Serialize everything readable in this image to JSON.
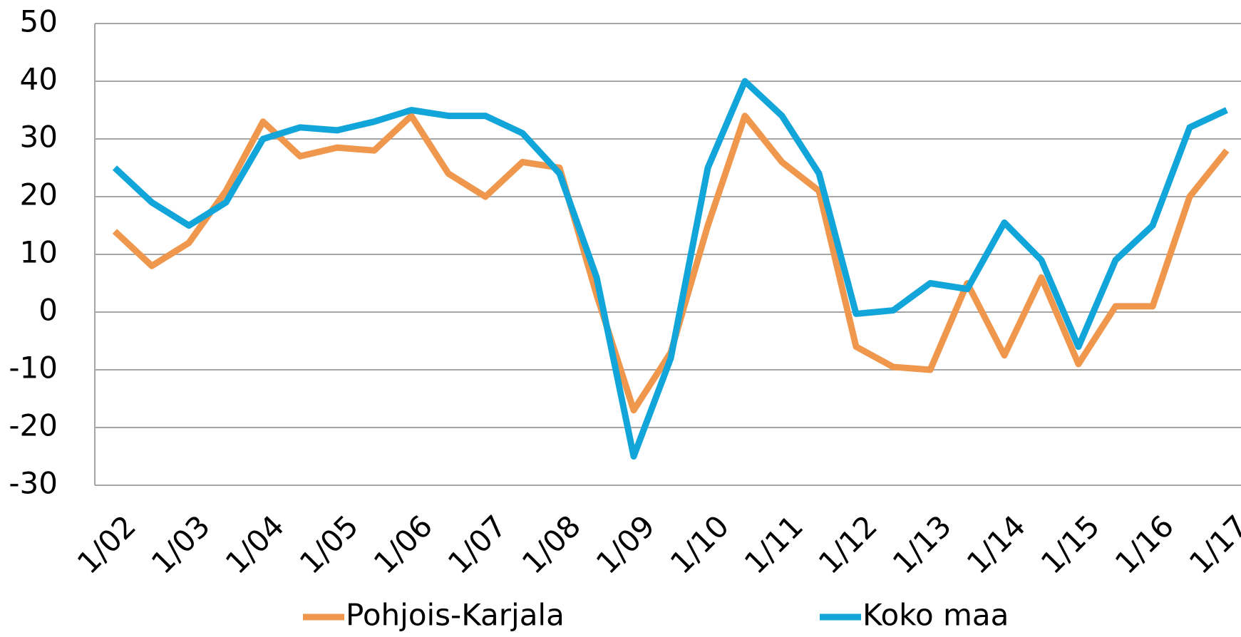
{
  "chart_data": {
    "type": "line",
    "categories": [
      "1/02",
      null,
      "1/03",
      null,
      "1/04",
      null,
      "1/05",
      null,
      "1/06",
      null,
      "1/07",
      null,
      "1/08",
      null,
      "1/09",
      null,
      "1/10",
      null,
      "1/11",
      null,
      "1/12",
      null,
      "1/13",
      null,
      "1/14",
      null,
      "1/15",
      null,
      "1/16",
      null,
      "1/17"
    ],
    "series": [
      {
        "name": "Pohjois-Karjala",
        "color": "#f0974e",
        "values": [
          14,
          8,
          12,
          21,
          33,
          27,
          28.5,
          28,
          34,
          24,
          20,
          26,
          25,
          3,
          -17,
          -7,
          15,
          34,
          26,
          21,
          -6,
          -9.5,
          -10,
          5,
          -7.5,
          6,
          -9,
          1,
          1,
          20,
          28
        ]
      },
      {
        "name": "Koko maa",
        "color": "#12a5d9",
        "values": [
          25,
          19,
          15,
          19,
          30,
          32,
          31.5,
          33,
          35,
          34,
          34,
          31,
          24,
          6,
          -25,
          -8,
          25,
          40,
          34,
          24,
          -0.3,
          0.3,
          5,
          4,
          15.5,
          9,
          -6,
          9,
          15,
          32,
          35
        ]
      }
    ],
    "ylim": [
      -30,
      50
    ],
    "yticks": [
      -30,
      -20,
      -10,
      0,
      10,
      20,
      30,
      40,
      50
    ],
    "grid": true,
    "legend": "bottom"
  }
}
